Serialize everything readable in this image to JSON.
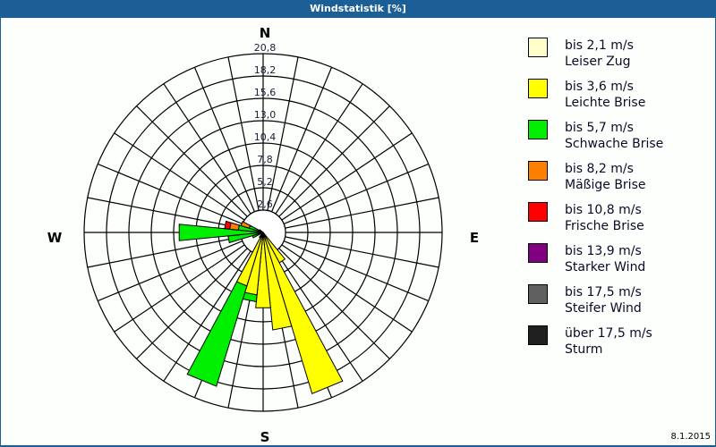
{
  "title": "Windstatistik [%]",
  "date": "8.1.2015",
  "compass": {
    "N": "N",
    "E": "E",
    "S": "S",
    "W": "W"
  },
  "ring_labels": [
    "2,6",
    "5,2",
    "7,8",
    "10,4",
    "13,0",
    "15,6",
    "18,2",
    "20,8"
  ],
  "legend": [
    {
      "range": "bis 2,1 m/s",
      "name": "Leiser Zug",
      "color": "#ffffcc"
    },
    {
      "range": "bis 3,6 m/s",
      "name": "Leichte Brise",
      "color": "#ffff00"
    },
    {
      "range": "bis 5,7 m/s",
      "name": "Schwache Brise",
      "color": "#00ee00"
    },
    {
      "range": "bis 8,2 m/s",
      "name": "Mäßige Brise",
      "color": "#ff8000"
    },
    {
      "range": "bis 10,8 m/s",
      "name": "Frische Brise",
      "color": "#ff0000"
    },
    {
      "range": "bis 13,9 m/s",
      "name": "Starker Wind",
      "color": "#800080"
    },
    {
      "range": "bis 17,5 m/s",
      "name": "Steifer Wind",
      "color": "#606060"
    },
    {
      "range": "über 17,5 m/s",
      "name": "Sturm",
      "color": "#202020"
    }
  ],
  "chart_data": {
    "type": "wind-rose",
    "title": "Windstatistik [%]",
    "unit": "%",
    "rmax": 20.8,
    "rings": [
      2.6,
      5.2,
      7.8,
      10.4,
      13.0,
      15.6,
      18.2,
      20.8
    ],
    "sectors": 32,
    "sector_width_deg": 11.25,
    "series_order": [
      "bis 2,1 m/s",
      "bis 3,6 m/s",
      "bis 5,7 m/s",
      "bis 8,2 m/s",
      "bis 10,8 m/s",
      "bis 13,9 m/s",
      "bis 17,5 m/s",
      "über 17,5 m/s"
    ],
    "petals": [
      {
        "dir": 146.25,
        "values": [
          0.2,
          3.8,
          0,
          0,
          0,
          0,
          0,
          0
        ]
      },
      {
        "dir": 157.5,
        "values": [
          0.2,
          19.4,
          0,
          0,
          0,
          0,
          0,
          0
        ]
      },
      {
        "dir": 168.75,
        "values": [
          0.2,
          11.2,
          0,
          0,
          0,
          0,
          0,
          0
        ]
      },
      {
        "dir": 180.0,
        "values": [
          0.2,
          8.6,
          0,
          0,
          0,
          0,
          0,
          0
        ]
      },
      {
        "dir": 191.25,
        "values": [
          0.2,
          7.1,
          0.8,
          0,
          0,
          0,
          0,
          0
        ]
      },
      {
        "dir": 202.5,
        "values": [
          0.2,
          6.3,
          12.2,
          0,
          0,
          0,
          0,
          0
        ]
      },
      {
        "dir": 213.75,
        "values": [
          0.1,
          0.3,
          0.3,
          0,
          0,
          0,
          0,
          0
        ]
      },
      {
        "dir": 247.5,
        "values": [
          0.1,
          0.2,
          1.0,
          0,
          0,
          0,
          0,
          0
        ]
      },
      {
        "dir": 258.75,
        "values": [
          0.1,
          0.2,
          3.8,
          0,
          0,
          0,
          0,
          0
        ]
      },
      {
        "dir": 270.0,
        "values": [
          0.1,
          0.3,
          9.4,
          0,
          0,
          0,
          0,
          0
        ]
      },
      {
        "dir": 281.25,
        "values": [
          0.1,
          0.2,
          2.6,
          1.0,
          0.6,
          0,
          0,
          0
        ]
      },
      {
        "dir": 292.5,
        "values": [
          0.1,
          0.2,
          1.4,
          1.0,
          0,
          0,
          0,
          0
        ]
      },
      {
        "dir": 303.75,
        "values": [
          0.1,
          0.1,
          0.3,
          0,
          0,
          0,
          0,
          0
        ]
      }
    ]
  }
}
